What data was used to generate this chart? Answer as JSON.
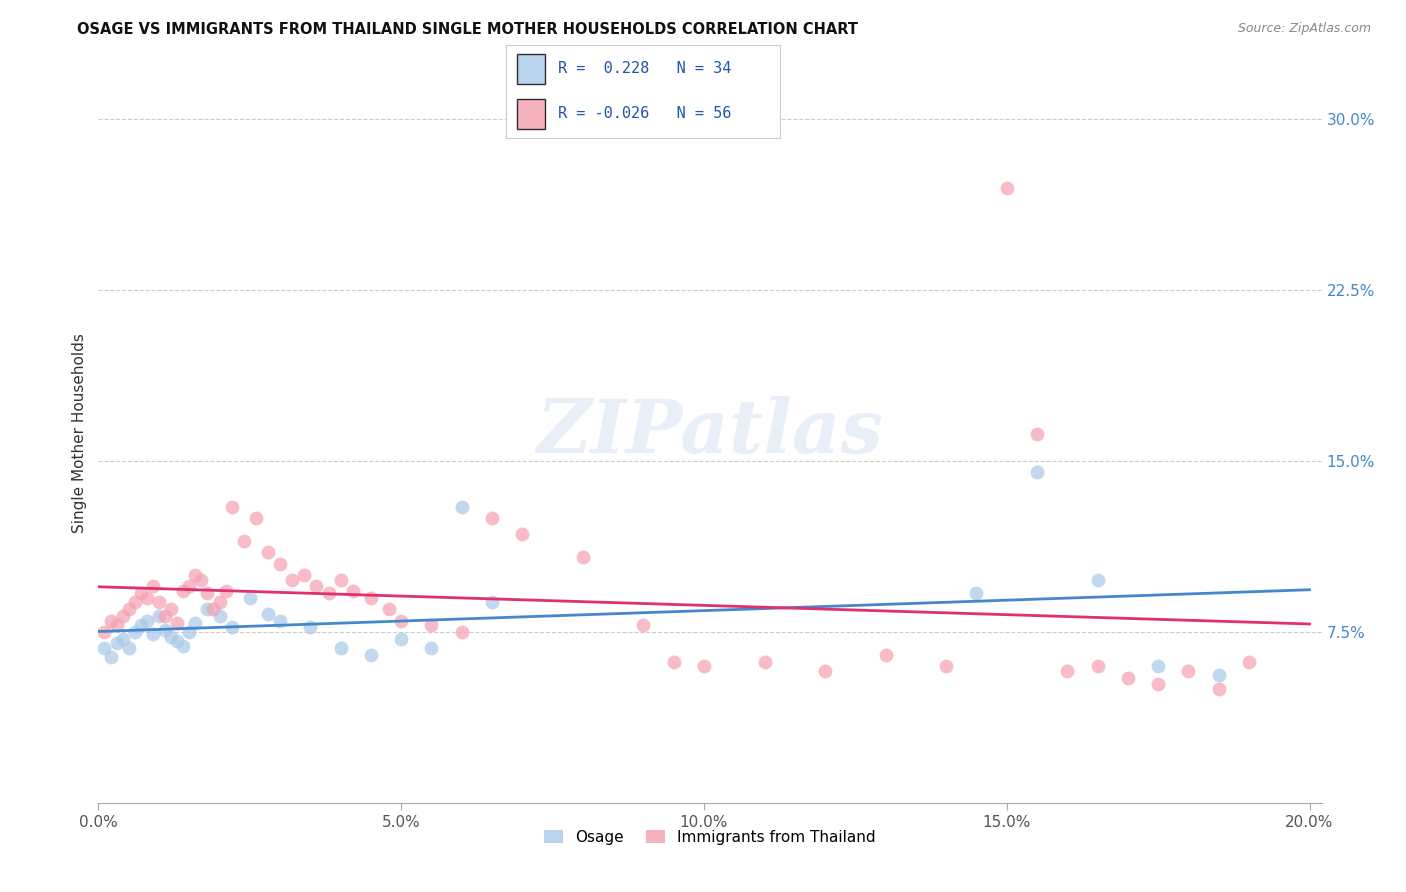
{
  "title": "OSAGE VS IMMIGRANTS FROM THAILAND SINGLE MOTHER HOUSEHOLDS CORRELATION CHART",
  "source": "Source: ZipAtlas.com",
  "ylabel": "Single Mother Households",
  "xlabel_ticks": [
    "0.0%",
    "5.0%",
    "10.0%",
    "15.0%",
    "20.0%"
  ],
  "ylabel_ticks": [
    "7.5%",
    "15.0%",
    "22.5%",
    "30.0%"
  ],
  "xlim": [
    0.0,
    0.2
  ],
  "ylim": [
    0.0,
    0.32
  ],
  "ytick_positions": [
    0.075,
    0.15,
    0.225,
    0.3
  ],
  "xtick_positions": [
    0.0,
    0.05,
    0.1,
    0.15,
    0.2
  ],
  "legend1_R": "0.228",
  "legend1_N": "34",
  "legend2_R": "-0.026",
  "legend2_N": "56",
  "legend_label1": "Osage",
  "legend_label2": "Immigrants from Thailand",
  "blue_color": "#a8c8e8",
  "pink_color": "#f4a0b0",
  "blue_line_color": "#4488cc",
  "pink_line_color": "#e03070",
  "osage_x": [
    0.001,
    0.002,
    0.003,
    0.004,
    0.005,
    0.006,
    0.007,
    0.008,
    0.009,
    0.01,
    0.011,
    0.012,
    0.013,
    0.014,
    0.015,
    0.016,
    0.018,
    0.02,
    0.022,
    0.025,
    0.028,
    0.03,
    0.035,
    0.04,
    0.045,
    0.05,
    0.055,
    0.06,
    0.065,
    0.145,
    0.155,
    0.165,
    0.175,
    0.185
  ],
  "osage_y": [
    0.068,
    0.064,
    0.07,
    0.072,
    0.068,
    0.075,
    0.078,
    0.08,
    0.074,
    0.082,
    0.076,
    0.073,
    0.071,
    0.069,
    0.075,
    0.079,
    0.085,
    0.082,
    0.077,
    0.09,
    0.083,
    0.08,
    0.077,
    0.068,
    0.065,
    0.072,
    0.068,
    0.13,
    0.088,
    0.092,
    0.145,
    0.098,
    0.06,
    0.056
  ],
  "thailand_x": [
    0.001,
    0.002,
    0.003,
    0.004,
    0.005,
    0.006,
    0.007,
    0.008,
    0.009,
    0.01,
    0.011,
    0.012,
    0.013,
    0.014,
    0.015,
    0.016,
    0.017,
    0.018,
    0.019,
    0.02,
    0.021,
    0.022,
    0.024,
    0.026,
    0.028,
    0.03,
    0.032,
    0.034,
    0.036,
    0.038,
    0.04,
    0.042,
    0.045,
    0.048,
    0.05,
    0.055,
    0.06,
    0.065,
    0.07,
    0.08,
    0.09,
    0.095,
    0.1,
    0.11,
    0.12,
    0.13,
    0.14,
    0.15,
    0.155,
    0.16,
    0.165,
    0.17,
    0.175,
    0.18,
    0.185,
    0.19
  ],
  "thailand_y": [
    0.075,
    0.08,
    0.078,
    0.082,
    0.085,
    0.088,
    0.092,
    0.09,
    0.095,
    0.088,
    0.082,
    0.085,
    0.079,
    0.093,
    0.095,
    0.1,
    0.098,
    0.092,
    0.085,
    0.088,
    0.093,
    0.13,
    0.115,
    0.125,
    0.11,
    0.105,
    0.098,
    0.1,
    0.095,
    0.092,
    0.098,
    0.093,
    0.09,
    0.085,
    0.08,
    0.078,
    0.075,
    0.125,
    0.118,
    0.108,
    0.078,
    0.062,
    0.06,
    0.062,
    0.058,
    0.065,
    0.06,
    0.27,
    0.162,
    0.058,
    0.06,
    0.055,
    0.052,
    0.058,
    0.05,
    0.062
  ]
}
